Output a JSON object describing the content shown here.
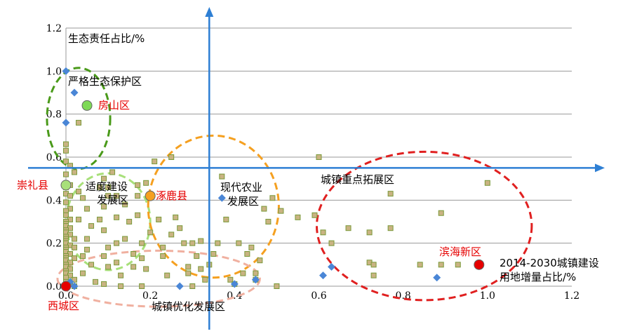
{
  "chart_data": {
    "type": "scatter",
    "title": "",
    "xlabel": "2014-2030城镇建设用地增量占比/%",
    "xlabel_lines": [
      "2014-2030城镇建设",
      "用地增量占比/%"
    ],
    "ylabel": "生态责任占比/%",
    "xlim": [
      0,
      1.2
    ],
    "ylim": [
      0,
      1.2
    ],
    "x_ticks": [
      "0.0",
      "0.2",
      "0.4",
      "0.6",
      "0.8",
      "1.0",
      "1.2"
    ],
    "y_ticks": [
      "0.0",
      "0.2",
      "0.4",
      "0.6",
      "0.8",
      "1.0",
      "1.2"
    ],
    "grid": "horizontal",
    "divider_lines": {
      "x": 0.34,
      "y": 0.55
    },
    "series": [
      {
        "marker": "square",
        "color": "#c9b382",
        "edge": "#7a9a3a",
        "points": [
          [
            0.0,
            0.66
          ],
          [
            0.0,
            0.63
          ],
          [
            0.0,
            0.58
          ],
          [
            0.01,
            0.56
          ],
          [
            0.0,
            0.52
          ],
          [
            0.02,
            0.53
          ],
          [
            0.01,
            0.47
          ],
          [
            0.0,
            0.46
          ],
          [
            0.0,
            0.43
          ],
          [
            0.01,
            0.42
          ],
          [
            0.0,
            0.39
          ],
          [
            0.01,
            0.36
          ],
          [
            0.0,
            0.35
          ],
          [
            0.0,
            0.33
          ],
          [
            0.01,
            0.31
          ],
          [
            0.0,
            0.3
          ],
          [
            0.0,
            0.29
          ],
          [
            0.0,
            0.28
          ],
          [
            0.01,
            0.27
          ],
          [
            0.0,
            0.26
          ],
          [
            0.0,
            0.25
          ],
          [
            0.01,
            0.24
          ],
          [
            0.0,
            0.23
          ],
          [
            0.0,
            0.22
          ],
          [
            0.02,
            0.22
          ],
          [
            0.0,
            0.21
          ],
          [
            0.0,
            0.2
          ],
          [
            0.01,
            0.19
          ],
          [
            0.0,
            0.18
          ],
          [
            0.02,
            0.18
          ],
          [
            0.0,
            0.17
          ],
          [
            0.0,
            0.16
          ],
          [
            0.01,
            0.15
          ],
          [
            0.0,
            0.14
          ],
          [
            0.0,
            0.13
          ],
          [
            0.02,
            0.13
          ],
          [
            0.0,
            0.12
          ],
          [
            0.01,
            0.11
          ],
          [
            0.0,
            0.1
          ],
          [
            0.0,
            0.09
          ],
          [
            0.01,
            0.08
          ],
          [
            0.0,
            0.07
          ],
          [
            0.0,
            0.06
          ],
          [
            0.01,
            0.05
          ],
          [
            0.0,
            0.04
          ],
          [
            0.02,
            0.03
          ],
          [
            0.0,
            0.02
          ],
          [
            0.01,
            0.01
          ],
          [
            0.0,
            0.0
          ],
          [
            0.02,
            0.0
          ],
          [
            0.03,
            0.76
          ],
          [
            0.03,
            0.44
          ],
          [
            0.04,
            0.41
          ],
          [
            0.05,
            0.36
          ],
          [
            0.03,
            0.31
          ],
          [
            0.05,
            0.17
          ],
          [
            0.04,
            0.14
          ],
          [
            0.06,
            0.28
          ],
          [
            0.05,
            0.22
          ],
          [
            0.06,
            0.1
          ],
          [
            0.04,
            0.06
          ],
          [
            0.07,
            0.02
          ],
          [
            0.08,
            0.46
          ],
          [
            0.09,
            0.5
          ],
          [
            0.1,
            0.46
          ],
          [
            0.1,
            0.42
          ],
          [
            0.09,
            0.37
          ],
          [
            0.08,
            0.31
          ],
          [
            0.09,
            0.26
          ],
          [
            0.1,
            0.18
          ],
          [
            0.09,
            0.14
          ],
          [
            0.1,
            0.09
          ],
          [
            0.09,
            0.01
          ],
          [
            0.11,
            0.53
          ],
          [
            0.12,
            0.42
          ],
          [
            0.12,
            0.32
          ],
          [
            0.12,
            0.2
          ],
          [
            0.12,
            0.11
          ],
          [
            0.13,
            0.05
          ],
          [
            0.13,
            0.0
          ],
          [
            0.14,
            0.38
          ],
          [
            0.15,
            0.3
          ],
          [
            0.14,
            0.22
          ],
          [
            0.16,
            0.15
          ],
          [
            0.16,
            0.09
          ],
          [
            0.17,
            0.47
          ],
          [
            0.17,
            0.42
          ],
          [
            0.17,
            0.33
          ],
          [
            0.18,
            0.2
          ],
          [
            0.18,
            0.13
          ],
          [
            0.18,
            0.0
          ],
          [
            0.19,
            0.48
          ],
          [
            0.19,
            0.08
          ],
          [
            0.2,
            0.25
          ],
          [
            0.21,
            0.58
          ],
          [
            0.22,
            0.31
          ],
          [
            0.23,
            0.18
          ],
          [
            0.23,
            0.14
          ],
          [
            0.24,
            0.05
          ],
          [
            0.25,
            0.6
          ],
          [
            0.25,
            0.24
          ],
          [
            0.26,
            0.32
          ],
          [
            0.27,
            0.27
          ],
          [
            0.28,
            0.2
          ],
          [
            0.29,
            0.09
          ],
          [
            0.29,
            0.06
          ],
          [
            0.3,
            0.0
          ],
          [
            0.3,
            0.2
          ],
          [
            0.31,
            0.14
          ],
          [
            0.32,
            0.21
          ],
          [
            0.32,
            0.08
          ],
          [
            0.33,
            0.03
          ],
          [
            0.34,
            0.1
          ],
          [
            0.35,
            0.15
          ],
          [
            0.36,
            0.2
          ],
          [
            0.37,
            0.51
          ],
          [
            0.38,
            0.31
          ],
          [
            0.39,
            0.03
          ],
          [
            0.4,
            0.01
          ],
          [
            0.41,
            0.2
          ],
          [
            0.42,
            0.06
          ],
          [
            0.43,
            0.15
          ],
          [
            0.44,
            0.18
          ],
          [
            0.45,
            0.06
          ],
          [
            0.45,
            0.03
          ],
          [
            0.46,
            0.12
          ],
          [
            0.47,
            0.36
          ],
          [
            0.48,
            0.3
          ],
          [
            0.49,
            0.41
          ],
          [
            0.5,
            0.0
          ],
          [
            0.51,
            0.35
          ],
          [
            0.55,
            0.32
          ],
          [
            0.59,
            0.33
          ],
          [
            0.6,
            0.6
          ],
          [
            0.61,
            0.25
          ],
          [
            0.63,
            0.2
          ],
          [
            0.67,
            0.27
          ],
          [
            0.72,
            0.11
          ],
          [
            0.72,
            0.25
          ],
          [
            0.73,
            0.05
          ],
          [
            0.73,
            0.1
          ],
          [
            0.77,
            0.43
          ],
          [
            0.77,
            0.27
          ],
          [
            0.84,
            0.1
          ],
          [
            0.89,
            0.34
          ],
          [
            0.89,
            0.1
          ],
          [
            0.93,
            0.1
          ],
          [
            1.0,
            0.48
          ]
        ]
      },
      {
        "marker": "diamond",
        "color": "#4a86d6",
        "points": [
          [
            0.0,
            1.0
          ],
          [
            0.02,
            0.9
          ],
          [
            0.0,
            0.76
          ],
          [
            0.0,
            0.0
          ],
          [
            0.01,
            0.02
          ],
          [
            0.02,
            0.0
          ],
          [
            0.27,
            0.0
          ],
          [
            0.37,
            0.41
          ],
          [
            0.4,
            0.01
          ],
          [
            0.45,
            0.03
          ],
          [
            0.61,
            0.05
          ],
          [
            0.63,
            0.09
          ],
          [
            0.88,
            0.04
          ]
        ]
      }
    ],
    "highlighted": [
      {
        "name": "房山区",
        "x": 0.05,
        "y": 0.84,
        "color": "#7ed957",
        "label_color": "#e60000"
      },
      {
        "name": "崇礼县",
        "x": 0.0,
        "y": 0.47,
        "color": "#a8e07a",
        "label_color": "#e60000"
      },
      {
        "name": "涿鹿县",
        "x": 0.2,
        "y": 0.42,
        "color": "#f5a020",
        "label_color": "#e60000"
      },
      {
        "name": "滨海新区",
        "x": 0.98,
        "y": 0.1,
        "color": "#e60000",
        "label_color": "#e60000"
      },
      {
        "name": "西城区",
        "x": 0.0,
        "y": 0.0,
        "color": "#e60000",
        "label_color": "#e60000"
      }
    ],
    "zones": [
      {
        "name": "严格生态保护区",
        "cx": 0.03,
        "cy": 0.78,
        "rx": 0.075,
        "ry": 0.235,
        "color": "#4a9a1a"
      },
      {
        "name_lines": [
          "适度建设",
          "发展区"
        ],
        "cx": 0.1,
        "cy": 0.3,
        "rx": 0.1,
        "ry": 0.225,
        "color": "#a8e07a"
      },
      {
        "name_lines": [
          "现代农业",
          "发展区"
        ],
        "cx": 0.35,
        "cy": 0.37,
        "rx": 0.155,
        "ry": 0.33,
        "color": "#f5a020"
      },
      {
        "name": "城镇重点拓展区",
        "cx": 0.85,
        "cy": 0.28,
        "rx": 0.255,
        "ry": 0.345,
        "color": "#e02020"
      },
      {
        "name": "城镇优化发展区",
        "cx": 0.22,
        "cy": 0.035,
        "rx": 0.24,
        "ry": 0.13,
        "color": "#f0b0a0"
      }
    ]
  }
}
